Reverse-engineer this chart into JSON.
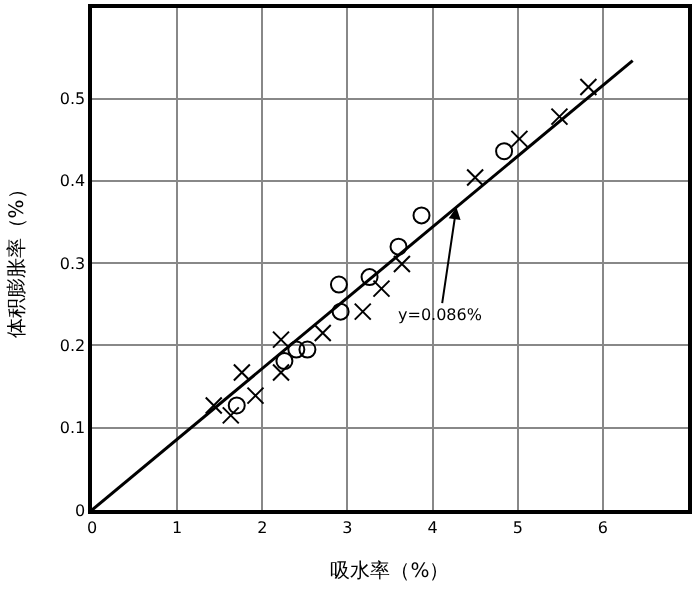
{
  "chart_data": {
    "type": "scatter",
    "xlabel": "吸水率（%）",
    "ylabel": "体积膨胀率（%）",
    "xlim": [
      0,
      7
    ],
    "ylim": [
      0,
      0.61
    ],
    "xticks": [
      0,
      1,
      2,
      3,
      4,
      5,
      6
    ],
    "yticks": [
      0,
      0.1,
      0.2,
      0.3,
      0.4,
      0.5
    ],
    "grid": true,
    "series": [
      {
        "marker": "circle",
        "color": "#000000",
        "x": [
          2.9,
          3.26,
          3.6,
          3.87,
          4.84,
          2.92,
          2.26,
          2.4,
          2.53,
          1.7
        ],
        "values": [
          0.274,
          0.283,
          0.32,
          0.358,
          0.436,
          0.241,
          0.181,
          0.195,
          0.195,
          0.127
        ]
      },
      {
        "marker": "cross",
        "color": "#000000",
        "x": [
          3.4,
          3.64,
          4.5,
          5.02,
          5.49,
          5.83,
          3.18,
          2.71,
          2.22,
          2.22,
          1.76,
          1.92,
          1.43,
          1.63
        ],
        "values": [
          0.269,
          0.299,
          0.404,
          0.451,
          0.478,
          0.514,
          0.241,
          0.215,
          0.207,
          0.167,
          0.167,
          0.139,
          0.127,
          0.115
        ]
      },
      {
        "type": "line",
        "marker": "none",
        "line_style": "solid",
        "color": "#000000",
        "x": [
          0,
          6.35
        ],
        "values": [
          0,
          0.546
        ]
      }
    ],
    "annotations": [
      {
        "text": "y=0.086%",
        "x": 4.28,
        "y": 0.368
      }
    ]
  }
}
